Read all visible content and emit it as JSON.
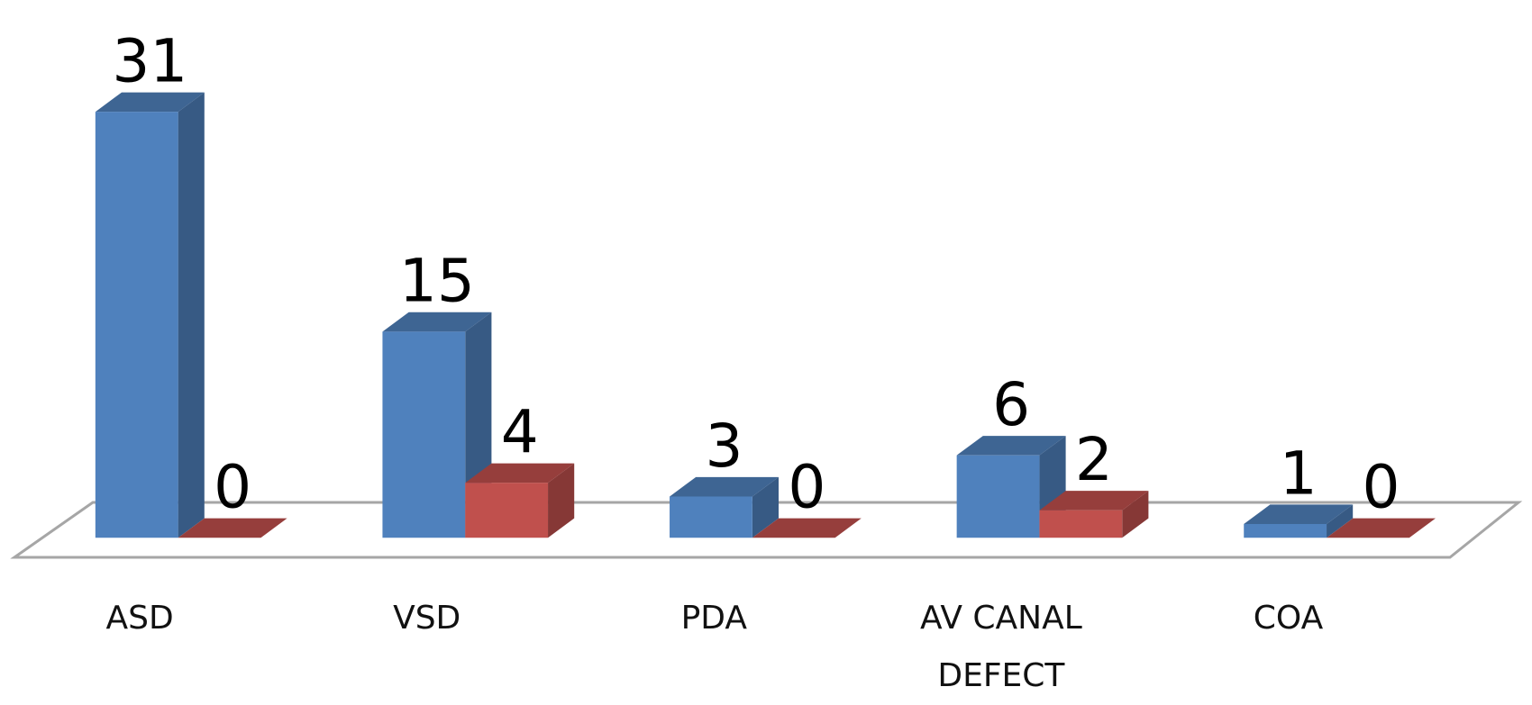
{
  "chart_data": {
    "type": "bar3d",
    "categories": [
      "ASD",
      "VSD",
      "PDA",
      "AV CANAL DEFECT",
      "COA"
    ],
    "series": [
      {
        "color": "#4f81bd",
        "values": [
          31,
          15,
          3,
          6,
          1
        ]
      },
      {
        "color": "#c0504d",
        "values": [
          0,
          4,
          0,
          2,
          0
        ]
      }
    ]
  }
}
